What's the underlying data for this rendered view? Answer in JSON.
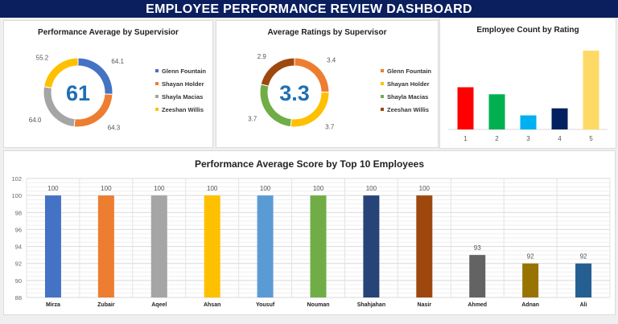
{
  "header": {
    "title": "EMPLOYEE PERFORMANCE REVIEW DASHBOARD"
  },
  "chart_data": [
    {
      "type": "pie",
      "title": "Performance Average by Supervisior",
      "center_label": "61",
      "labels": [
        "Glenn Fountain",
        "Shayan Holder",
        "Shayla Macias",
        "Zeeshan Willis"
      ],
      "values": [
        64.1,
        64.3,
        64.0,
        55.2
      ],
      "value_labels": [
        "64.1",
        "64.3",
        "64.0",
        "55.2"
      ],
      "colors": [
        "#4472c4",
        "#ed7d31",
        "#a5a5a5",
        "#ffc000"
      ],
      "legend": "right"
    },
    {
      "type": "pie",
      "title": "Average Ratings by Supervisor",
      "center_label": "3.3",
      "labels": [
        "Glenn Fountain",
        "Shayan Holder",
        "Shayla Macias",
        "Zeeshan Willis"
      ],
      "values": [
        3.4,
        3.7,
        3.7,
        2.9
      ],
      "value_labels": [
        "3.4",
        "3.7",
        "3.7",
        "2.9"
      ],
      "colors": [
        "#ed7d31",
        "#ffc000",
        "#70ad47",
        "#9e480e"
      ],
      "legend": "right"
    },
    {
      "type": "bar",
      "title": "Employee Count by Rating",
      "categories": [
        "1",
        "2",
        "3",
        "4",
        "5"
      ],
      "values": [
        15,
        12.5,
        5,
        7.5,
        28
      ],
      "colors": [
        "#ff0000",
        "#00b050",
        "#00b0f0",
        "#002060",
        "#ffd966"
      ]
    },
    {
      "type": "bar",
      "title": "Performance Average Score by Top 10 Employees",
      "categories": [
        "Mirza",
        "Zubair",
        "Aqeel",
        "Ahsan",
        "Yousuf",
        "Nouman",
        "Shahjahan",
        "Nasir",
        "Ahmed",
        "Adnan",
        "Ali"
      ],
      "values": [
        100,
        100,
        100,
        100,
        100,
        100,
        100,
        100,
        93,
        92,
        92
      ],
      "value_labels": [
        "100",
        "100",
        "100",
        "100",
        "100",
        "100",
        "100",
        "100",
        "93",
        "92",
        "92"
      ],
      "colors": [
        "#4472c4",
        "#ed7d31",
        "#a5a5a5",
        "#ffc000",
        "#5b9bd5",
        "#70ad47",
        "#264478",
        "#9e480e",
        "#636363",
        "#997300",
        "#255e91"
      ],
      "ylim": [
        88,
        102
      ],
      "yticks": [
        "88",
        "90",
        "92",
        "94",
        "96",
        "98",
        "100",
        "102"
      ],
      "grid": true
    }
  ]
}
